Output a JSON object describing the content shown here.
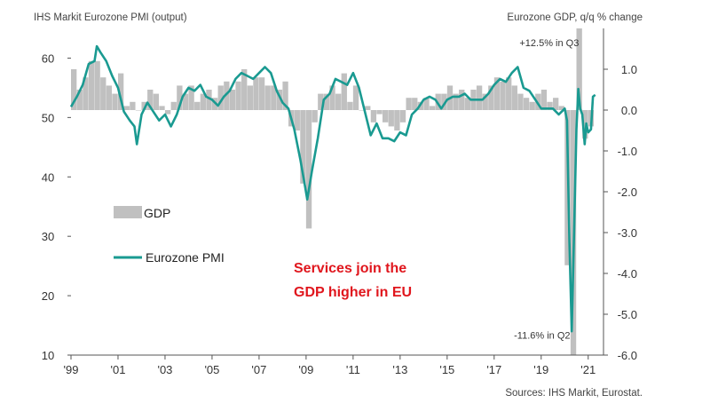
{
  "chart_data": {
    "type": "bar+line",
    "title_left": "IHS Markit Eurozone PMI (output)",
    "title_right": "Eurozone GDP, q/q % change",
    "source": "Sources: IHS Markit, Eurostat.",
    "callout_lines": [
      "Services join the",
      "GDP higher in EU"
    ],
    "annotations": [
      {
        "text": "+12.5% in Q3",
        "x": 2020.72,
        "y_right": 1.57
      },
      {
        "text": "-11.6% in Q2",
        "x": 2020.35,
        "y_right": -5.6
      }
    ],
    "legend": [
      {
        "label": "GDP",
        "kind": "bar"
      },
      {
        "label": "Eurozone PMI",
        "kind": "line"
      }
    ],
    "left_axis": {
      "min": 10,
      "max": 65,
      "ticks": [
        10,
        20,
        30,
        40,
        50,
        60
      ]
    },
    "right_axis": {
      "min": -6.0,
      "max": 2.0,
      "ticks": [
        "-6.0",
        "-5.0",
        "-4.0",
        "-3.0",
        "-2.0",
        "-1.0",
        "0.0",
        "1.0"
      ]
    },
    "x_axis": {
      "min": 1999,
      "max": 2021.5,
      "tick_years": [
        1999,
        2001,
        2003,
        2005,
        2007,
        2009,
        2011,
        2013,
        2015,
        2017,
        2019,
        2021
      ],
      "tick_labels": [
        "'99",
        "'01",
        "'03",
        "'05",
        "'07",
        "'09",
        "'11",
        "'13",
        "'15",
        "'17",
        "'19",
        "'21"
      ]
    },
    "gdp_qoq": {
      "start": 1999.0,
      "step": 0.25,
      "clip_top": 2.0,
      "values": [
        1.0,
        0.5,
        0.8,
        1.2,
        1.2,
        0.8,
        0.6,
        0.4,
        0.9,
        0.1,
        0.2,
        0.0,
        0.2,
        0.5,
        0.4,
        0.1,
        -0.1,
        0.2,
        0.6,
        0.4,
        0.6,
        0.2,
        0.4,
        0.5,
        0.3,
        0.6,
        0.7,
        0.5,
        0.7,
        1.0,
        0.6,
        0.8,
        0.8,
        0.6,
        0.6,
        0.5,
        0.7,
        -0.4,
        -0.5,
        -1.8,
        -2.9,
        -0.3,
        0.4,
        0.4,
        0.6,
        0.4,
        0.9,
        0.2,
        0.6,
        0.0,
        0.1,
        -0.3,
        -0.1,
        -0.3,
        -0.4,
        -0.5,
        -0.3,
        0.3,
        0.3,
        0.2,
        0.3,
        0.1,
        0.4,
        0.4,
        0.6,
        0.4,
        0.5,
        0.3,
        0.5,
        0.6,
        0.4,
        0.6,
        0.8,
        0.7,
        0.8,
        0.6,
        0.4,
        0.3,
        0.2,
        0.4,
        0.5,
        0.2,
        0.3,
        0.1,
        -3.8,
        -11.6,
        12.5,
        -0.7,
        -0.4
      ],
      "display_clip_bottom": -6.0
    },
    "eurozone_pmi": {
      "points": [
        [
          1999.0,
          51.8
        ],
        [
          1999.25,
          53.5
        ],
        [
          1999.5,
          55.5
        ],
        [
          1999.75,
          59.0
        ],
        [
          2000.0,
          59.5
        ],
        [
          2000.1,
          62.0
        ],
        [
          2000.25,
          61.0
        ],
        [
          2000.5,
          59.5
        ],
        [
          2000.75,
          57.0
        ],
        [
          2001.0,
          55.0
        ],
        [
          2001.25,
          51.0
        ],
        [
          2001.5,
          49.5
        ],
        [
          2001.7,
          48.5
        ],
        [
          2001.8,
          45.5
        ],
        [
          2002.0,
          50.5
        ],
        [
          2002.25,
          52.5
        ],
        [
          2002.5,
          51.0
        ],
        [
          2002.75,
          49.5
        ],
        [
          2003.0,
          50.5
        ],
        [
          2003.25,
          48.5
        ],
        [
          2003.5,
          50.5
        ],
        [
          2003.75,
          53.5
        ],
        [
          2004.0,
          55.0
        ],
        [
          2004.25,
          54.5
        ],
        [
          2004.5,
          55.5
        ],
        [
          2004.75,
          53.5
        ],
        [
          2005.0,
          53.0
        ],
        [
          2005.25,
          52.0
        ],
        [
          2005.5,
          53.5
        ],
        [
          2005.75,
          54.5
        ],
        [
          2006.0,
          56.5
        ],
        [
          2006.25,
          57.5
        ],
        [
          2006.5,
          57.0
        ],
        [
          2006.75,
          56.5
        ],
        [
          2007.0,
          57.5
        ],
        [
          2007.25,
          58.5
        ],
        [
          2007.5,
          57.5
        ],
        [
          2007.75,
          54.5
        ],
        [
          2008.0,
          52.5
        ],
        [
          2008.25,
          51.5
        ],
        [
          2008.5,
          48.0
        ],
        [
          2008.75,
          43.0
        ],
        [
          2008.95,
          38.5
        ],
        [
          2009.05,
          36.2
        ],
        [
          2009.25,
          41.0
        ],
        [
          2009.5,
          46.5
        ],
        [
          2009.75,
          53.0
        ],
        [
          2010.0,
          54.0
        ],
        [
          2010.25,
          56.5
        ],
        [
          2010.5,
          56.0
        ],
        [
          2010.75,
          55.5
        ],
        [
          2011.0,
          57.5
        ],
        [
          2011.25,
          55.0
        ],
        [
          2011.5,
          51.0
        ],
        [
          2011.75,
          47.0
        ],
        [
          2012.0,
          49.0
        ],
        [
          2012.25,
          46.5
        ],
        [
          2012.5,
          46.5
        ],
        [
          2012.75,
          46.0
        ],
        [
          2013.0,
          47.5
        ],
        [
          2013.25,
          47.0
        ],
        [
          2013.5,
          50.5
        ],
        [
          2013.75,
          51.5
        ],
        [
          2014.0,
          53.0
        ],
        [
          2014.25,
          53.5
        ],
        [
          2014.5,
          53.0
        ],
        [
          2014.75,
          51.5
        ],
        [
          2015.0,
          53.0
        ],
        [
          2015.25,
          53.5
        ],
        [
          2015.5,
          53.5
        ],
        [
          2015.75,
          54.0
        ],
        [
          2016.0,
          53.0
        ],
        [
          2016.25,
          53.0
        ],
        [
          2016.5,
          53.0
        ],
        [
          2016.75,
          54.0
        ],
        [
          2017.0,
          55.5
        ],
        [
          2017.25,
          56.5
        ],
        [
          2017.5,
          56.0
        ],
        [
          2017.75,
          57.5
        ],
        [
          2018.0,
          58.5
        ],
        [
          2018.25,
          55.0
        ],
        [
          2018.5,
          54.5
        ],
        [
          2018.75,
          53.0
        ],
        [
          2019.0,
          51.5
        ],
        [
          2019.25,
          51.5
        ],
        [
          2019.5,
          51.5
        ],
        [
          2019.75,
          50.5
        ],
        [
          2020.0,
          51.5
        ],
        [
          2020.1,
          49.5
        ],
        [
          2020.2,
          29.0
        ],
        [
          2020.3,
          14.0
        ],
        [
          2020.4,
          31.0
        ],
        [
          2020.5,
          48.0
        ],
        [
          2020.58,
          54.8
        ],
        [
          2020.66,
          51.5
        ],
        [
          2020.75,
          50.5
        ],
        [
          2020.85,
          45.5
        ],
        [
          2020.92,
          49.0
        ],
        [
          2021.0,
          47.5
        ],
        [
          2021.12,
          48.0
        ],
        [
          2021.2,
          53.5
        ],
        [
          2021.3,
          53.8
        ]
      ]
    },
    "colors": {
      "bar": "#c0c0c0",
      "line": "#1a9a91",
      "axis": "#555555",
      "callout": "#e0161d"
    }
  }
}
